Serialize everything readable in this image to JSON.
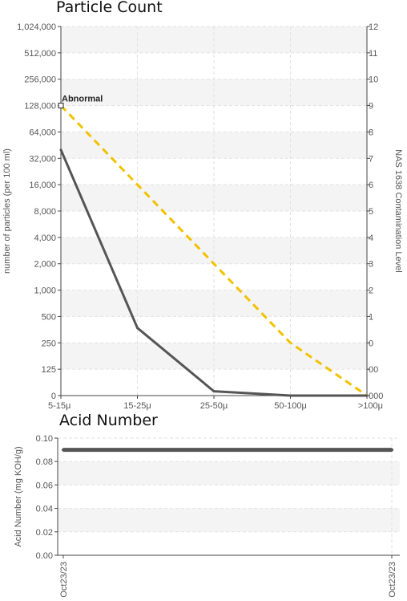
{
  "chart_data": [
    {
      "type": "line",
      "title": "Particle Count",
      "categories": [
        "5-15μ",
        "15-25μ",
        "25-50μ",
        "50-100μ",
        ">100μ"
      ],
      "ylabel": "number of particles (per 100 ml)",
      "y2label": "NAS 1638 Contamination Level",
      "y_scale": "log2",
      "y_ticks": [
        "0",
        "125",
        "250",
        "500",
        "1,000",
        "2,000",
        "4,000",
        "8,000",
        "16,000",
        "32,000",
        "64,000",
        "128,000",
        "256,000",
        "512,000",
        "1,024,000"
      ],
      "y2_ticks": [
        "000",
        "00",
        "0",
        "1",
        "2",
        "3",
        "4",
        "5",
        "6",
        "7",
        "8",
        "9",
        "10",
        "11",
        "12"
      ],
      "series": [
        {
          "values": [
            40000,
            370,
            70,
            55,
            60
          ],
          "color": "#555555"
        }
      ],
      "limit_line": {
        "values": [
          128000,
          16000,
          2000,
          250,
          62
        ],
        "color": "#f2c200",
        "style": "dashed"
      },
      "annotation": "Abnormal",
      "grid": true
    },
    {
      "type": "line",
      "title": "Acid Number",
      "categories": [
        "Oct23/23",
        "Oct23/23"
      ],
      "ylabel": "Acid Number (mg KOH/g)",
      "y_ticks": [
        "0.00",
        "0.02",
        "0.04",
        "0.06",
        "0.08",
        "0.10"
      ],
      "ylim": [
        0,
        0.1
      ],
      "series": [
        {
          "values": [
            0.09,
            0.09
          ],
          "color": "#555555"
        }
      ],
      "grid": true
    }
  ]
}
